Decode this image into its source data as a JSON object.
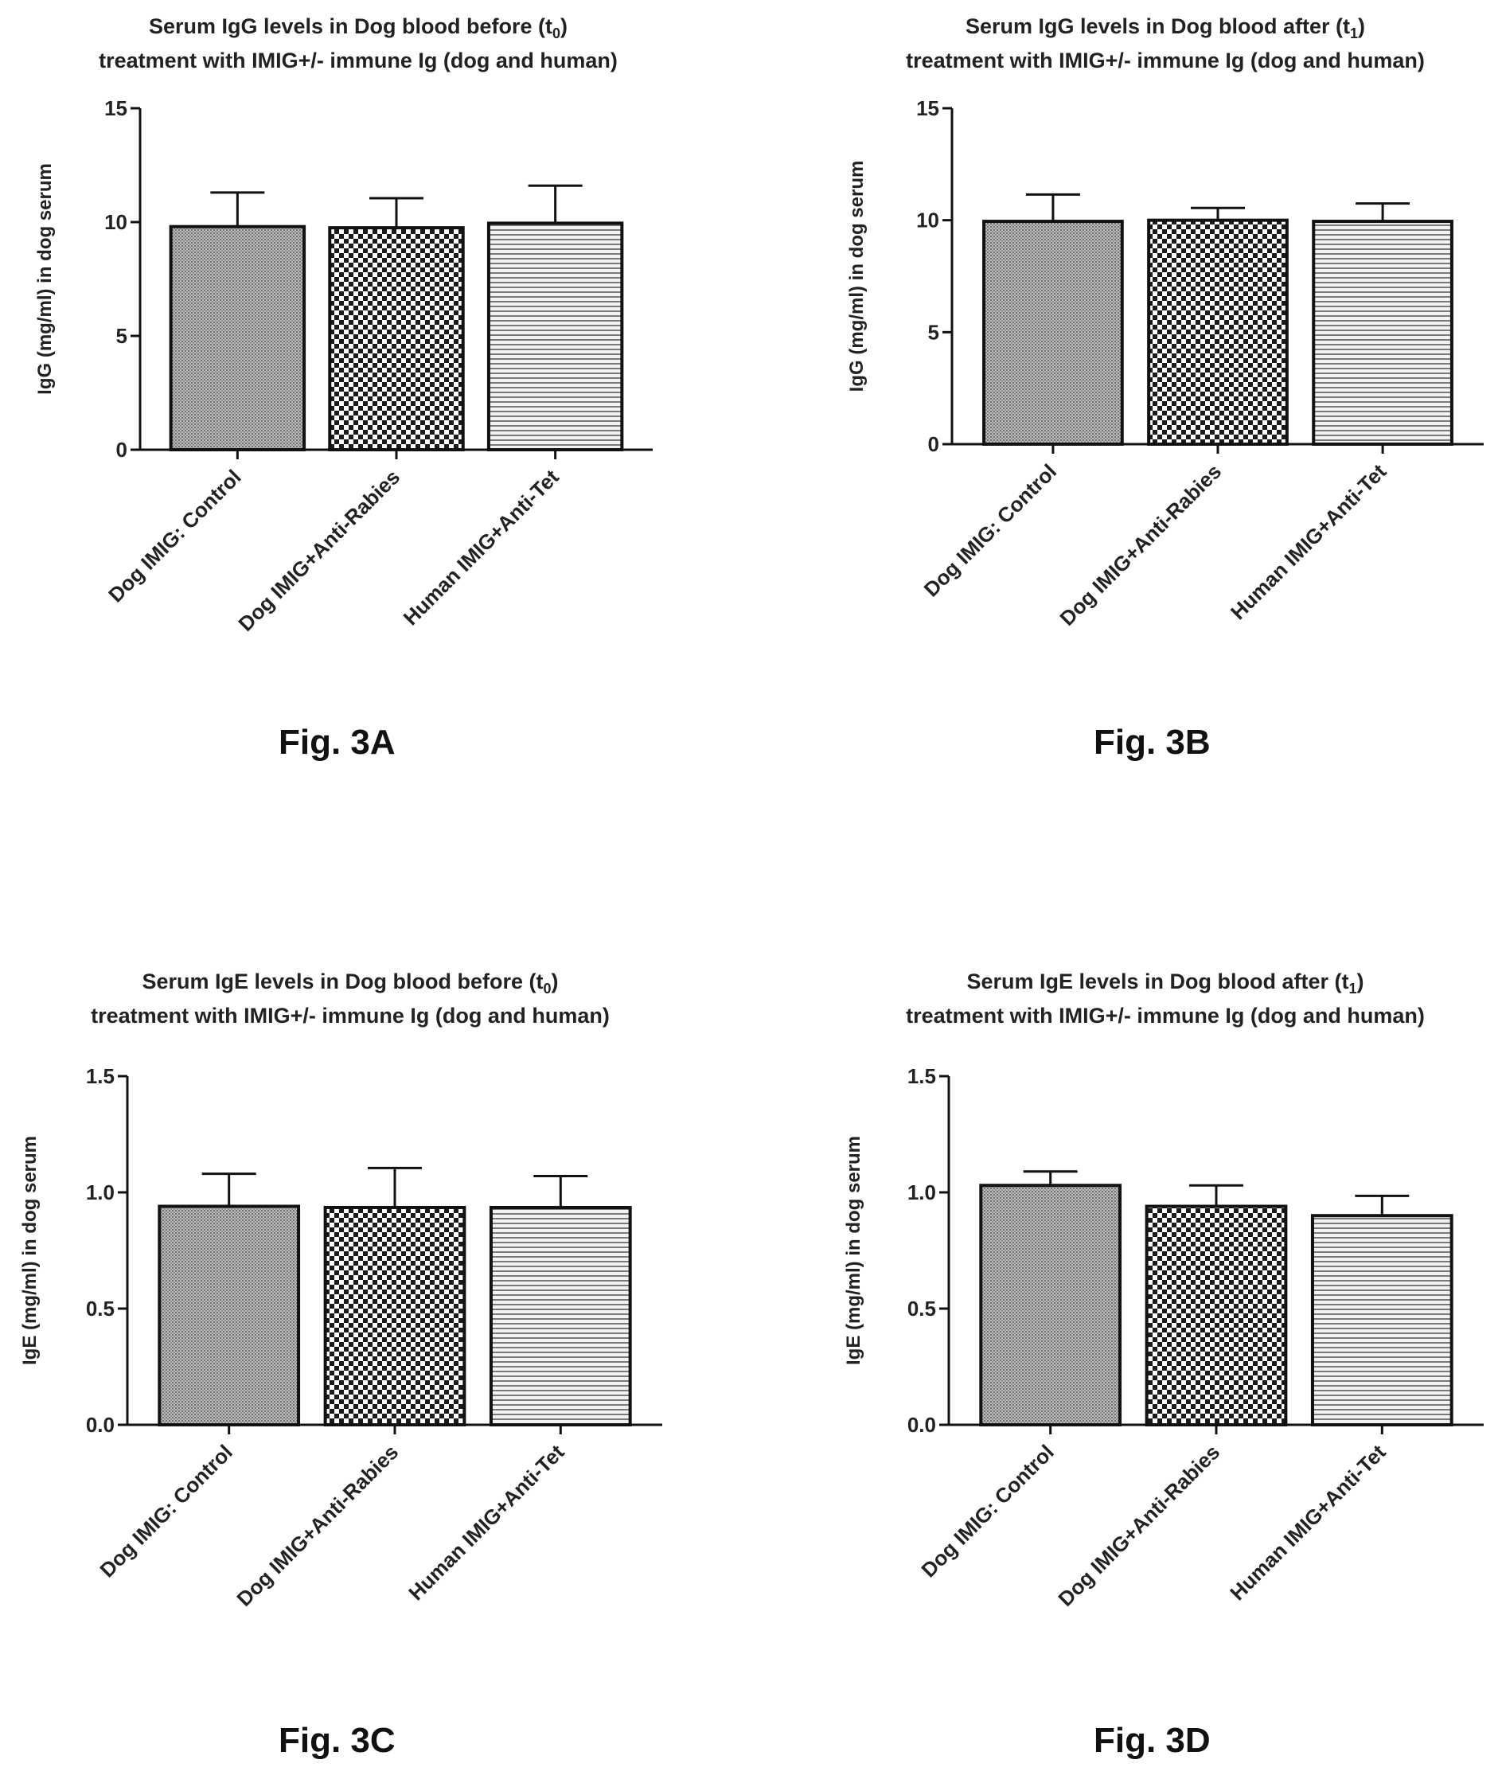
{
  "chart_data": [
    {
      "type": "bar",
      "title": "Serum IgG levels in Dog blood before (t0) treatment with IMIG+/- immune  Ig (dog and human)",
      "title_lines": [
        "Serum IgG levels in Dog blood before (t",
        "0",
        ")",
        "treatment with IMIG+/- immune  Ig (dog and human)"
      ],
      "ylabel": "IgG (mg/ml) in dog serum",
      "categories": [
        "Dog IMIG: Control",
        "Dog IMIG+Anti-Rabies",
        "Human IMIG+Anti-Tet"
      ],
      "values": [
        9.8,
        9.75,
        9.95
      ],
      "errors": [
        1.5,
        1.3,
        1.65
      ],
      "patterns": [
        "dots",
        "checker",
        "hstripes"
      ],
      "ylim": [
        0,
        15
      ],
      "yticks": [
        0,
        5,
        10,
        15
      ],
      "ytick_labels": [
        "0",
        "5",
        "10",
        "15"
      ],
      "grid": false,
      "figure_label": "Fig. 3A"
    },
    {
      "type": "bar",
      "title": "Serum IgG levels in Dog blood after (t1) treatment with IMIG+/- immune  Ig (dog and human)",
      "title_lines": [
        "Serum IgG levels in Dog blood after (t",
        "1",
        ")",
        "treatment with IMIG+/- immune  Ig (dog and human)"
      ],
      "ylabel": "IgG (mg/ml) in dog serum",
      "categories": [
        "Dog IMIG: Control",
        "Dog IMIG+Anti-Rabies",
        "Human IMIG+Anti-Tet"
      ],
      "values": [
        9.95,
        10.0,
        9.95
      ],
      "errors": [
        1.2,
        0.55,
        0.8
      ],
      "patterns": [
        "dots",
        "checker",
        "hstripes"
      ],
      "ylim": [
        0,
        15
      ],
      "yticks": [
        0,
        5,
        10,
        15
      ],
      "ytick_labels": [
        "0",
        "5",
        "10",
        "15"
      ],
      "grid": false,
      "figure_label": "Fig. 3B"
    },
    {
      "type": "bar",
      "title": "Serum IgE levels in Dog blood before (t0) treatment with IMIG+/- immune  Ig (dog and human)",
      "title_lines": [
        "Serum IgE levels in Dog blood before (t",
        "0",
        ")",
        "treatment with IMIG+/- immune  Ig (dog and human)"
      ],
      "ylabel": "IgE (mg/ml) in dog serum",
      "categories": [
        "Dog IMIG: Control",
        "Dog IMIG+Anti-Rabies",
        "Human IMIG+Anti-Tet"
      ],
      "values": [
        0.94,
        0.935,
        0.935
      ],
      "errors": [
        0.14,
        0.17,
        0.135
      ],
      "patterns": [
        "dots",
        "checker",
        "hstripes"
      ],
      "ylim": [
        0,
        1.5
      ],
      "yticks": [
        0,
        0.5,
        1.0,
        1.5
      ],
      "ytick_labels": [
        "0.0",
        "0.5",
        "1.0",
        "1.5"
      ],
      "grid": false,
      "figure_label": "Fig. 3C"
    },
    {
      "type": "bar",
      "title": "Serum IgE levels in Dog blood after (t1) treatment with IMIG+/- immune  Ig (dog and human)",
      "title_lines": [
        "Serum IgE levels in Dog blood after (t",
        "1",
        ")",
        "treatment with IMIG+/- immune  Ig (dog and human)"
      ],
      "ylabel": "IgE (mg/ml) in dog serum",
      "categories": [
        "Dog IMIG: Control",
        "Dog IMIG+Anti-Rabies",
        "Human IMIG+Anti-Tet"
      ],
      "values": [
        1.03,
        0.94,
        0.9
      ],
      "errors": [
        0.06,
        0.09,
        0.085
      ],
      "patterns": [
        "dots",
        "checker",
        "hstripes"
      ],
      "ylim": [
        0,
        1.5
      ],
      "yticks": [
        0,
        0.5,
        1.0,
        1.5
      ],
      "ytick_labels": [
        "0.0",
        "0.5",
        "1.0",
        "1.5"
      ],
      "grid": false,
      "figure_label": "Fig. 3D"
    }
  ]
}
